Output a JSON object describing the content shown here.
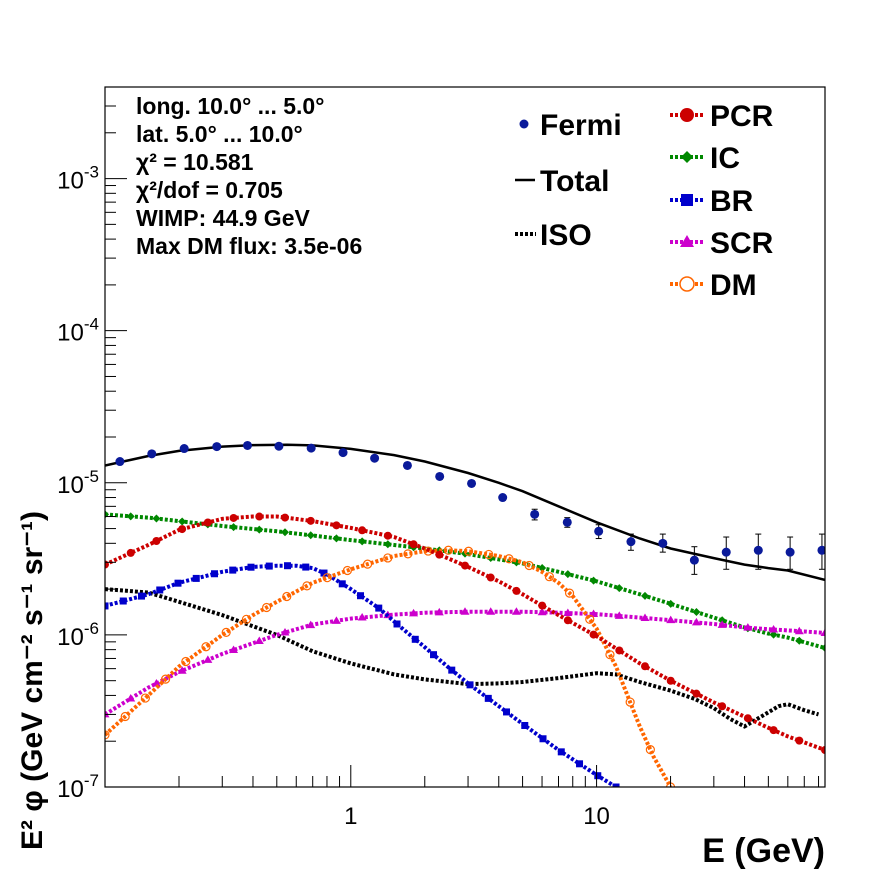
{
  "chart_data": {
    "type": "line",
    "xlabel": "E (GeV)",
    "ylabel": "E² φ (GeV cm⁻² s⁻¹ sr⁻¹)",
    "xscale": "log",
    "yscale": "log",
    "xlim": [
      0.1,
      85
    ],
    "ylim": [
      1e-07,
      0.004
    ],
    "x_tick_labels": [
      {
        "value": 1,
        "label": "1"
      },
      {
        "value": 10,
        "label": "10"
      }
    ],
    "y_tick_labels": [
      {
        "value": 1e-07,
        "base": "10",
        "exp": "-7"
      },
      {
        "value": 1e-06,
        "base": "10",
        "exp": "-6"
      },
      {
        "value": 1e-05,
        "base": "10",
        "exp": "-5"
      },
      {
        "value": 0.0001,
        "base": "10",
        "exp": "-4"
      },
      {
        "value": 0.001,
        "base": "10",
        "exp": "-3"
      }
    ],
    "grid": false,
    "legend_placement": "top-right",
    "info_text": [
      "long. 10.0° ... 5.0°",
      "lat. 5.0° ... 10.0°",
      "χ² = 10.581",
      "χ²/dof = 0.705",
      "WIMP: 44.9 GeV",
      "Max DM flux: 3.5e-06"
    ],
    "legend_left": [
      {
        "name": "Fermi",
        "marker": "dot",
        "color": "#0a1a9a"
      },
      {
        "name": "Total",
        "marker": "line",
        "color": "#000000"
      },
      {
        "name": "ISO",
        "marker": "dotted",
        "color": "#000000"
      }
    ],
    "legend_right": [
      {
        "name": "PCR",
        "marker": "circle",
        "color": "#cc0000"
      },
      {
        "name": "IC",
        "marker": "diamond",
        "color": "#008800"
      },
      {
        "name": "BR",
        "marker": "square",
        "color": "#0000cc"
      },
      {
        "name": "SCR",
        "marker": "triangle",
        "color": "#cc00cc"
      },
      {
        "name": "DM",
        "marker": "open-circle",
        "color": "#ff6600"
      }
    ],
    "fermi_points": {
      "x": [
        0.115,
        0.155,
        0.21,
        0.285,
        0.38,
        0.51,
        0.69,
        0.93,
        1.25,
        1.7,
        2.3,
        3.1,
        4.15,
        5.6,
        7.6,
        10.2,
        13.8,
        18.6,
        25.0,
        33.7,
        45.5,
        61.3,
        82.6
      ],
      "y": [
        1.38e-05,
        1.55e-05,
        1.68e-05,
        1.73e-05,
        1.76e-05,
        1.74e-05,
        1.69e-05,
        1.58e-05,
        1.45e-05,
        1.3e-05,
        1.1e-05,
        9.9e-06,
        8e-06,
        6.2e-06,
        5.5e-06,
        4.8e-06,
        4.1e-06,
        4e-06,
        3.1e-06,
        3.5e-06,
        3.6e-06,
        3.5e-06,
        3.6e-06
      ],
      "yerr_lo": [
        0,
        0,
        0,
        0,
        0,
        0,
        0,
        0,
        0,
        0,
        0,
        0,
        0,
        5e-07,
        4e-07,
        5e-07,
        5e-07,
        5e-07,
        6e-07,
        8e-07,
        9e-07,
        8e-07,
        9e-07
      ],
      "yerr_hi": [
        0,
        0,
        0,
        0,
        0,
        0,
        0,
        0,
        0,
        0,
        0,
        0,
        0,
        5e-07,
        4e-07,
        5e-07,
        5e-07,
        6e-07,
        7e-07,
        9e-07,
        1e-06,
        9e-07,
        1e-06
      ]
    },
    "series": [
      {
        "name": "Total",
        "color": "#000000",
        "style": "solid",
        "marker": "none",
        "x": [
          0.1,
          0.15,
          0.2,
          0.3,
          0.4,
          0.55,
          0.7,
          1.0,
          1.5,
          2.0,
          3.0,
          4.0,
          5.0,
          7.0,
          10.0,
          15.0,
          20.0,
          30.0,
          40.0,
          50.0,
          60.0,
          85.0
        ],
        "y": [
          1.3e-05,
          1.5e-05,
          1.62e-05,
          1.73e-05,
          1.77e-05,
          1.78e-05,
          1.76e-05,
          1.67e-05,
          1.52e-05,
          1.38e-05,
          1.16e-05,
          1e-05,
          8.8e-06,
          7e-06,
          5.5e-06,
          4.3e-06,
          3.7e-06,
          3.2e-06,
          2.9e-06,
          2.75e-06,
          2.65e-06,
          2.3e-06
        ]
      },
      {
        "name": "ISO",
        "color": "#000000",
        "style": "dotted",
        "marker": "none",
        "x": [
          0.1,
          0.15,
          0.2,
          0.3,
          0.5,
          0.7,
          1.0,
          1.5,
          2.0,
          3.0,
          4.0,
          5.0,
          7.0,
          10.0,
          12.0,
          15.0,
          20.0,
          25.0,
          30.0,
          35.0,
          40.0,
          45.0,
          50.0,
          55.0,
          60.0,
          70.0,
          80.0
        ],
        "y": [
          2e-06,
          1.9e-06,
          1.65e-06,
          1.35e-06,
          1e-06,
          7.8e-07,
          6.5e-07,
          5.5e-07,
          5.1e-07,
          4.75e-07,
          4.8e-07,
          4.9e-07,
          5.2e-07,
          5.6e-07,
          5.5e-07,
          4.9e-07,
          4.3e-07,
          3.8e-07,
          3.3e-07,
          2.8e-07,
          2.5e-07,
          2.8e-07,
          3.1e-07,
          3.4e-07,
          3.5e-07,
          3.2e-07,
          3e-07
        ]
      },
      {
        "name": "PCR",
        "color": "#cc0000",
        "style": "dotted",
        "marker": "circle",
        "x": [
          0.1,
          0.15,
          0.2,
          0.3,
          0.4,
          0.5,
          0.7,
          1.0,
          1.5,
          2.0,
          3.0,
          4.0,
          5.0,
          7.0,
          10.0,
          15.0,
          20.0,
          30.0,
          40.0,
          50.0,
          60.0,
          85.0
        ],
        "y": [
          2.9e-06,
          3.9e-06,
          4.9e-06,
          5.8e-06,
          6e-06,
          6e-06,
          5.6e-06,
          5.05e-06,
          4.4e-06,
          3.7e-06,
          2.8e-06,
          2.25e-06,
          1.85e-06,
          1.35e-06,
          9.8e-07,
          6.5e-07,
          5e-07,
          3.6e-07,
          2.9e-07,
          2.45e-07,
          2.15e-07,
          1.75e-07
        ]
      },
      {
        "name": "IC",
        "color": "#008800",
        "style": "dotted",
        "marker": "diamond",
        "x": [
          0.1,
          0.15,
          0.2,
          0.3,
          0.5,
          0.7,
          1.0,
          1.5,
          2.0,
          3.0,
          5.0,
          7.0,
          10.0,
          15.0,
          20.0,
          30.0,
          40.0,
          50.0,
          60.0,
          85.0
        ],
        "y": [
          6.2e-06,
          5.9e-06,
          5.6e-06,
          5.2e-06,
          4.8e-06,
          4.5e-06,
          4.2e-06,
          3.9e-06,
          3.7e-06,
          3.4e-06,
          2.95e-06,
          2.6e-06,
          2.25e-06,
          1.85e-06,
          1.6e-06,
          1.3e-06,
          1.12e-06,
          1.02e-06,
          9.6e-07,
          8.2e-07
        ]
      },
      {
        "name": "BR",
        "color": "#0000cc",
        "style": "dotted",
        "marker": "square",
        "x": [
          0.1,
          0.15,
          0.2,
          0.3,
          0.4,
          0.5,
          0.6,
          0.7,
          0.8,
          1.0,
          1.3,
          1.6,
          2.0,
          2.5,
          3.0,
          4.0,
          5.0,
          7.0,
          10.0,
          12.0
        ],
        "y": [
          1.55e-06,
          1.85e-06,
          2.2e-06,
          2.6e-06,
          2.8e-06,
          2.85e-06,
          2.85e-06,
          2.75e-06,
          2.5e-06,
          2e-06,
          1.5e-06,
          1.12e-06,
          8.3e-07,
          6.1e-07,
          4.8e-07,
          3.4e-07,
          2.6e-07,
          1.75e-07,
          1.2e-07,
          1e-07
        ]
      },
      {
        "name": "SCR",
        "color": "#cc00cc",
        "style": "dotted",
        "marker": "triangle",
        "x": [
          0.1,
          0.15,
          0.2,
          0.3,
          0.5,
          0.7,
          1.0,
          1.5,
          2.0,
          3.0,
          5.0,
          7.0,
          10.0,
          15.0,
          20.0,
          30.0,
          40.0,
          50.0,
          60.0,
          85.0
        ],
        "y": [
          3e-07,
          4.5e-07,
          5.7e-07,
          7.5e-07,
          1e-06,
          1.17e-06,
          1.28e-06,
          1.36e-06,
          1.4e-06,
          1.42e-06,
          1.42e-06,
          1.4e-06,
          1.37e-06,
          1.3e-06,
          1.25e-06,
          1.18e-06,
          1.12e-06,
          1.09e-06,
          1.07e-06,
          1.03e-06
        ]
      },
      {
        "name": "DM",
        "color": "#ff6600",
        "style": "dotted",
        "marker": "open-circle",
        "x": [
          0.1,
          0.15,
          0.2,
          0.3,
          0.4,
          0.5,
          0.7,
          1.0,
          1.5,
          2.0,
          2.5,
          3.0,
          4.0,
          5.0,
          6.0,
          7.0,
          8.0,
          10.0,
          12.0,
          15.0,
          17.0,
          20.0
        ],
        "y": [
          2.2e-07,
          4e-07,
          6.2e-07,
          1e-06,
          1.35e-06,
          1.65e-06,
          2.2e-06,
          2.7e-06,
          3.3e-06,
          3.55e-06,
          3.6e-06,
          3.55e-06,
          3.3e-06,
          3e-06,
          2.6e-06,
          2.2e-06,
          1.8e-06,
          1.1e-06,
          6.2e-07,
          2.5e-07,
          1.6e-07,
          1e-07
        ]
      }
    ]
  }
}
